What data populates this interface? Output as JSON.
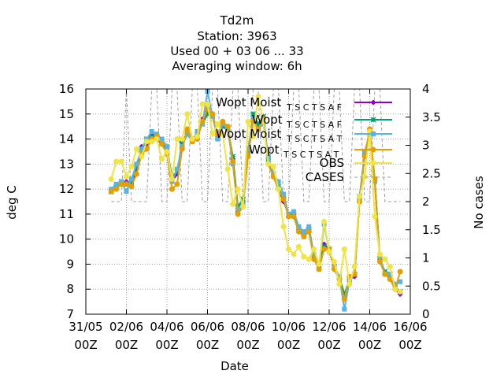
{
  "title": {
    "line1": "Td2m",
    "line2": "Station:     3963",
    "line3": "Used  00 + 03 06 ... 33",
    "line4": "Averaging window:  6h"
  },
  "axes": {
    "xlabel": "Date",
    "ylabel": "deg C",
    "y2label": "No cases"
  },
  "colors": {
    "s1": "#9400d3",
    "s2": "#009e73",
    "s3": "#56b4e9",
    "s4": "#e69f00",
    "obs": "#f0e442",
    "cases": "#a0a0a0"
  },
  "chart_data": {
    "type": "line",
    "title": "Td2m",
    "xlabel": "Date",
    "ylabel": "deg C",
    "y2label": "No cases",
    "ylim": [
      7,
      16
    ],
    "y2lim": [
      0,
      4
    ],
    "xlim": [
      0,
      16
    ],
    "grid": true,
    "legend_position": "top-right",
    "x_ticks": [
      {
        "x": 0,
        "l1": "31/05",
        "l2": "00Z"
      },
      {
        "x": 2,
        "l1": "02/06",
        "l2": "00Z"
      },
      {
        "x": 4,
        "l1": "04/06",
        "l2": "00Z"
      },
      {
        "x": 6,
        "l1": "06/06",
        "l2": "00Z"
      },
      {
        "x": 8,
        "l1": "08/06",
        "l2": "00Z"
      },
      {
        "x": 10,
        "l1": "10/06",
        "l2": "00Z"
      },
      {
        "x": 12,
        "l1": "12/06",
        "l2": "00Z"
      },
      {
        "x": 14,
        "l1": "14/06",
        "l2": "00Z"
      },
      {
        "x": 16,
        "l1": "16/06",
        "l2": "00Z"
      }
    ],
    "y_ticks": [
      "7",
      "8",
      "9",
      "10",
      "11",
      "12",
      "13",
      "14",
      "15",
      "16"
    ],
    "y2_ticks": [
      "0",
      "0.5",
      "1",
      "1.5",
      "2",
      "2.5",
      "3",
      "3.5",
      "4"
    ],
    "x": [
      1.25,
      1.5,
      1.75,
      2.0,
      2.25,
      2.5,
      2.75,
      3.0,
      3.25,
      3.5,
      3.75,
      4.0,
      4.25,
      4.5,
      4.75,
      5.0,
      5.25,
      5.5,
      5.75,
      6.0,
      6.25,
      6.5,
      6.75,
      7.0,
      7.25,
      7.5,
      7.75,
      8.0,
      8.25,
      8.5,
      8.75,
      9.0,
      9.25,
      9.5,
      9.75,
      10.0,
      10.25,
      10.5,
      10.75,
      11.0,
      11.25,
      11.5,
      11.75,
      12.0,
      12.25,
      12.5,
      12.75,
      13.0,
      13.25,
      13.5,
      13.75,
      14.0,
      14.25,
      14.5,
      14.75,
      15.0,
      15.25,
      15.5
    ],
    "series": [
      {
        "name": "Wopt Moist",
        "name_sub": "T S C T S A F",
        "color_key": "s1",
        "marker": "plus",
        "values": [
          11.9,
          12.1,
          12.2,
          12.3,
          12.2,
          12.8,
          13.7,
          13.8,
          14.2,
          14.0,
          13.8,
          13.6,
          12.3,
          12.6,
          13.9,
          14.2,
          13.9,
          14.1,
          14.8,
          15.1,
          15.0,
          14.0,
          14.6,
          14.4,
          13.2,
          11.1,
          11.5,
          13.5,
          14.8,
          14.5,
          14.8,
          13.0,
          12.5,
          12.0,
          11.5,
          11.0,
          11.0,
          10.4,
          10.1,
          10.4,
          9.3,
          8.8,
          9.8,
          9.6,
          8.8,
          8.4,
          7.7,
          8.4,
          8.5,
          11.6,
          13.3,
          14.3,
          12.3,
          9.2,
          8.6,
          8.5,
          8.0,
          7.8
        ]
      },
      {
        "name": "Wopt",
        "name_sub": "T S C T S A F",
        "color_key": "s2",
        "marker": "star",
        "values": [
          11.9,
          12.1,
          12.3,
          12.2,
          12.3,
          12.9,
          13.5,
          14.0,
          14.1,
          14.1,
          13.9,
          13.6,
          12.5,
          12.7,
          13.8,
          14.3,
          14.0,
          14.2,
          14.6,
          15.0,
          14.9,
          14.1,
          14.5,
          14.4,
          13.3,
          11.3,
          11.6,
          13.4,
          15.0,
          14.6,
          14.9,
          13.2,
          12.6,
          12.1,
          11.6,
          11.0,
          11.0,
          10.4,
          10.2,
          10.4,
          9.3,
          8.9,
          9.7,
          9.6,
          8.9,
          8.5,
          7.8,
          8.4,
          8.6,
          11.7,
          13.4,
          14.3,
          12.4,
          9.2,
          8.7,
          8.6,
          8.1,
          7.9
        ]
      },
      {
        "name": "Wopt Moist",
        "name_sub": "T S C T S A T",
        "color_key": "s3",
        "marker": "square",
        "values": [
          12.0,
          12.2,
          12.3,
          11.9,
          12.4,
          13.0,
          13.6,
          14.0,
          14.3,
          14.2,
          14.0,
          13.7,
          12.3,
          12.8,
          13.7,
          14.2,
          13.9,
          14.3,
          14.6,
          15.9,
          14.9,
          14.0,
          14.6,
          14.4,
          13.0,
          11.2,
          11.4,
          13.6,
          14.8,
          14.4,
          14.6,
          13.3,
          12.6,
          12.3,
          11.8,
          11.0,
          11.1,
          10.5,
          10.3,
          10.5,
          9.4,
          8.8,
          10.6,
          9.5,
          8.9,
          8.5,
          7.2,
          8.3,
          8.6,
          11.6,
          13.5,
          14.2,
          12.3,
          9.3,
          8.6,
          8.6,
          8.2,
          8.3
        ]
      },
      {
        "name": "Wopt",
        "name_sub": "T S C T S A T",
        "color_key": "s4",
        "marker": "circle",
        "values": [
          11.9,
          12.0,
          12.2,
          12.2,
          12.1,
          12.6,
          13.4,
          13.6,
          14.0,
          14.1,
          13.8,
          13.4,
          12.0,
          12.2,
          13.6,
          14.4,
          13.9,
          14.0,
          14.7,
          15.2,
          15.0,
          14.2,
          14.7,
          14.5,
          13.1,
          11.0,
          11.3,
          13.3,
          14.7,
          14.4,
          14.8,
          13.0,
          12.5,
          12.0,
          11.6,
          10.9,
          10.9,
          10.3,
          10.1,
          10.3,
          9.2,
          8.8,
          9.6,
          9.6,
          8.8,
          8.4,
          7.6,
          8.5,
          8.6,
          11.5,
          13.3,
          14.4,
          12.4,
          9.1,
          8.6,
          8.4,
          8.0,
          8.7
        ]
      },
      {
        "name": "OBS",
        "color_key": "obs",
        "marker": "circle",
        "values": [
          12.4,
          13.1,
          13.1,
          12.5,
          12.9,
          13.6,
          13.3,
          13.9,
          13.9,
          14.0,
          13.2,
          13.5,
          12.4,
          14.0,
          14.0,
          15.0,
          14.0,
          14.1,
          15.4,
          15.4,
          14.2,
          14.6,
          14.2,
          12.8,
          11.4,
          12.0,
          11.3,
          14.7,
          14.1,
          15.7,
          14.7,
          13.0,
          12.9,
          12.0,
          10.5,
          9.6,
          9.4,
          9.7,
          9.3,
          9.2,
          9.6,
          9.0,
          10.7,
          9.5,
          9.1,
          8.2,
          9.6,
          8.2,
          8.9,
          11.7,
          12.5,
          14.3,
          10.9,
          9.4,
          9.2,
          8.9,
          8.0,
          7.9
        ]
      },
      {
        "name": "CASES",
        "color_key": "cases",
        "axis": "y2",
        "values": [
          2,
          2,
          2,
          4,
          2,
          2,
          2,
          2,
          4,
          4,
          2,
          2,
          4,
          4,
          2,
          2,
          4,
          4,
          2,
          2,
          4,
          4,
          2,
          2,
          4,
          4,
          2,
          2,
          4,
          4,
          2,
          2,
          4,
          4,
          2,
          2,
          4,
          4,
          2,
          2,
          4,
          4,
          2,
          2,
          4,
          4,
          2,
          2,
          4,
          4,
          2,
          2,
          4,
          4,
          2,
          2,
          2,
          2
        ]
      }
    ]
  }
}
